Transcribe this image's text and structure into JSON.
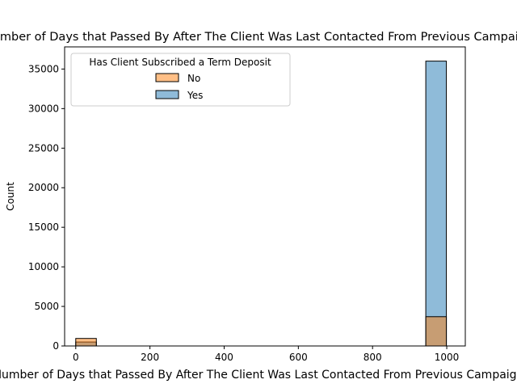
{
  "chart_data": {
    "type": "bar",
    "title": "Number of Days that Passed By After The Client Was Last Contacted From Previous Campaign",
    "xlabel": "Number of Days that Passed By After The Client Was Last Contacted From Previous Campaign",
    "ylabel": "Count",
    "xlim": [
      -30,
      1050
    ],
    "ylim": [
      0,
      37800
    ],
    "xticks": [
      0,
      200,
      400,
      600,
      800,
      1000
    ],
    "yticks": [
      0,
      5000,
      10000,
      15000,
      20000,
      25000,
      30000,
      35000
    ],
    "legend": {
      "title": "Has Client Subscribed a Term Deposit",
      "placement": "top-left",
      "entries": [
        "No",
        "Yes"
      ]
    },
    "bins": {
      "start": 0,
      "width": 55.5,
      "count": 18
    },
    "series": [
      {
        "name": "Yes",
        "color": "#1f77b4",
        "values": [
          500,
          0,
          0,
          0,
          0,
          0,
          0,
          0,
          0,
          0,
          0,
          0,
          0,
          0,
          0,
          0,
          0,
          36000
        ]
      },
      {
        "name": "No",
        "color": "#ff7f0e",
        "values": [
          950,
          0,
          0,
          0,
          0,
          0,
          0,
          0,
          0,
          0,
          0,
          0,
          0,
          0,
          0,
          0,
          0,
          3700
        ]
      }
    ]
  }
}
